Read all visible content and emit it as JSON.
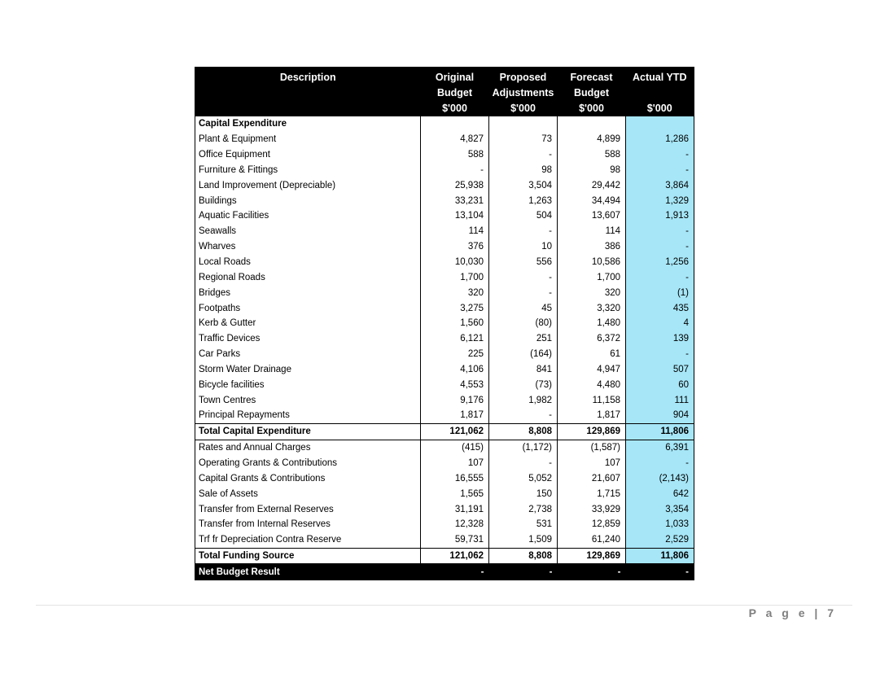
{
  "columns": {
    "description": "Description",
    "original": [
      "Original",
      "Budget",
      "$'000"
    ],
    "proposed": [
      "Proposed",
      "Adjustments",
      "$'000"
    ],
    "forecast": [
      "Forecast",
      "Budget",
      "$'000"
    ],
    "actual": [
      "Actual YTD",
      "",
      "$'000"
    ]
  },
  "section_title": "Capital Expenditure",
  "expenditure_rows": [
    {
      "desc": "Plant & Equipment",
      "original": "4,827",
      "proposed": "73",
      "forecast": "4,899",
      "actual": "1,286"
    },
    {
      "desc": "Office Equipment",
      "original": "588",
      "proposed": "-",
      "forecast": "588",
      "actual": "-"
    },
    {
      "desc": "Furniture & Fittings",
      "original": "-",
      "proposed": "98",
      "forecast": "98",
      "actual": "-"
    },
    {
      "desc": "Land Improvement (Depreciable)",
      "original": "25,938",
      "proposed": "3,504",
      "forecast": "29,442",
      "actual": "3,864"
    },
    {
      "desc": "Buildings",
      "original": "33,231",
      "proposed": "1,263",
      "forecast": "34,494",
      "actual": "1,329"
    },
    {
      "desc": "Aquatic Facilities",
      "original": "13,104",
      "proposed": "504",
      "forecast": "13,607",
      "actual": "1,913"
    },
    {
      "desc": "Seawalls",
      "original": "114",
      "proposed": "-",
      "forecast": "114",
      "actual": "-"
    },
    {
      "desc": "Wharves",
      "original": "376",
      "proposed": "10",
      "forecast": "386",
      "actual": "-"
    },
    {
      "desc": "Local Roads",
      "original": "10,030",
      "proposed": "556",
      "forecast": "10,586",
      "actual": "1,256"
    },
    {
      "desc": "Regional Roads",
      "original": "1,700",
      "proposed": "-",
      "forecast": "1,700",
      "actual": "-"
    },
    {
      "desc": "Bridges",
      "original": "320",
      "proposed": "-",
      "forecast": "320",
      "actual": "(1)"
    },
    {
      "desc": "Footpaths",
      "original": "3,275",
      "proposed": "45",
      "forecast": "3,320",
      "actual": "435"
    },
    {
      "desc": "Kerb & Gutter",
      "original": "1,560",
      "proposed": "(80)",
      "forecast": "1,480",
      "actual": "4"
    },
    {
      "desc": "Traffic Devices",
      "original": "6,121",
      "proposed": "251",
      "forecast": "6,372",
      "actual": "139"
    },
    {
      "desc": "Car Parks",
      "original": "225",
      "proposed": "(164)",
      "forecast": "61",
      "actual": "-"
    },
    {
      "desc": "Storm Water Drainage",
      "original": "4,106",
      "proposed": "841",
      "forecast": "4,947",
      "actual": "507"
    },
    {
      "desc": "Bicycle facilities",
      "original": "4,553",
      "proposed": "(73)",
      "forecast": "4,480",
      "actual": "60"
    },
    {
      "desc": "Town Centres",
      "original": "9,176",
      "proposed": "1,982",
      "forecast": "11,158",
      "actual": "111"
    },
    {
      "desc": "Principal Repayments",
      "original": "1,817",
      "proposed": "-",
      "forecast": "1,817",
      "actual": "904"
    }
  ],
  "total_expenditure": {
    "desc": "Total Capital Expenditure",
    "original": "121,062",
    "proposed": "8,808",
    "forecast": "129,869",
    "actual": "11,806"
  },
  "funding_rows": [
    {
      "desc": "Rates and Annual Charges",
      "original": "(415)",
      "proposed": "(1,172)",
      "forecast": "(1,587)",
      "actual": "6,391"
    },
    {
      "desc": "Operating Grants & Contributions",
      "original": "107",
      "proposed": "-",
      "forecast": "107",
      "actual": "-"
    },
    {
      "desc": "Capital Grants & Contributions",
      "original": "16,555",
      "proposed": "5,052",
      "forecast": "21,607",
      "actual": "(2,143)"
    },
    {
      "desc": "Sale of Assets",
      "original": "1,565",
      "proposed": "150",
      "forecast": "1,715",
      "actual": "642"
    },
    {
      "desc": "Transfer from External Reserves",
      "original": "31,191",
      "proposed": "2,738",
      "forecast": "33,929",
      "actual": "3,354"
    },
    {
      "desc": "Transfer from Internal Reserves",
      "original": "12,328",
      "proposed": "531",
      "forecast": "12,859",
      "actual": "1,033"
    },
    {
      "desc": "Trf fr Depreciation Contra Reserve",
      "original": "59,731",
      "proposed": "1,509",
      "forecast": "61,240",
      "actual": "2,529"
    }
  ],
  "total_funding": {
    "desc": "Total Funding Source",
    "original": "121,062",
    "proposed": "8,808",
    "forecast": "129,869",
    "actual": "11,806"
  },
  "net_result": {
    "desc": "Net Budget Result",
    "original": "-",
    "proposed": "-",
    "forecast": "-",
    "actual": "-"
  },
  "footer": {
    "page_label": "P a g e",
    "separator": "|",
    "page_number": "7"
  },
  "colors": {
    "header_bg": "#000000",
    "ytd_highlight": "#a6e6f7",
    "footer_text": "#7f7f7f"
  }
}
